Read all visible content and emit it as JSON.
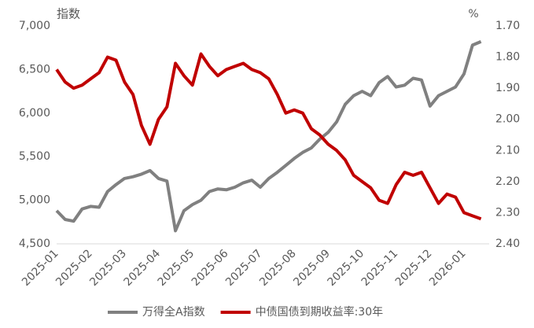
{
  "chart_data": {
    "type": "line",
    "y_label": "指数",
    "y2_label": "%",
    "categories": [
      "2025-01",
      null,
      null,
      null,
      "2025-02",
      null,
      null,
      null,
      "2025-03",
      null,
      null,
      null,
      "2025-04",
      null,
      null,
      null,
      "2025-05",
      null,
      null,
      null,
      "2025-06",
      null,
      null,
      null,
      "2025-07",
      null,
      null,
      null,
      "2025-08",
      null,
      null,
      null,
      "2025-09",
      null,
      null,
      null,
      "2025-10",
      null,
      null,
      null,
      "2025-11",
      null,
      null,
      null,
      "2025-12",
      null,
      null,
      null,
      "2026-01",
      null,
      null
    ],
    "series": [
      {
        "name": "万得全A指数",
        "color": "#808080",
        "axis": "y",
        "values": [
          4880,
          4780,
          4760,
          4900,
          4930,
          4920,
          5100,
          5180,
          5250,
          5270,
          5300,
          5340,
          5250,
          5220,
          4650,
          4880,
          4950,
          5000,
          5100,
          5130,
          5120,
          5150,
          5200,
          5230,
          5150,
          5250,
          5320,
          5400,
          5480,
          5550,
          5600,
          5700,
          5780,
          5900,
          6100,
          6200,
          6250,
          6200,
          6350,
          6420,
          6300,
          6320,
          6400,
          6380,
          6080,
          6200,
          6250,
          6300,
          6450,
          6780,
          6820
        ]
      },
      {
        "name": "中债国债到期收益率:30年",
        "color": "#c00000",
        "axis": "y2",
        "values": [
          1.84,
          1.88,
          1.9,
          1.89,
          1.87,
          1.85,
          1.8,
          1.81,
          1.88,
          1.92,
          2.02,
          2.08,
          2.0,
          1.96,
          1.82,
          1.86,
          1.89,
          1.79,
          1.83,
          1.86,
          1.84,
          1.83,
          1.82,
          1.84,
          1.85,
          1.87,
          1.92,
          1.98,
          1.97,
          1.98,
          2.03,
          2.05,
          2.08,
          2.1,
          2.13,
          2.18,
          2.2,
          2.22,
          2.26,
          2.27,
          2.21,
          2.17,
          2.18,
          2.17,
          2.22,
          2.27,
          2.24,
          2.25,
          2.3,
          2.31,
          2.32
        ]
      }
    ],
    "ylim": [
      4500,
      7000
    ],
    "yticks": [
      {
        "value": 4500,
        "label": "4,500"
      },
      {
        "value": 5000,
        "label": "5,000"
      },
      {
        "value": 5500,
        "label": "5,500"
      },
      {
        "value": 6000,
        "label": "6,000"
      },
      {
        "value": 6500,
        "label": "6,500"
      },
      {
        "value": 7000,
        "label": "7,000"
      }
    ],
    "y2lim": [
      1.7,
      2.4
    ],
    "y2_inverted": true,
    "y2ticks": [
      {
        "value": 1.7,
        "label": "1.70"
      },
      {
        "value": 1.8,
        "label": "1.80"
      },
      {
        "value": 1.9,
        "label": "1.90"
      },
      {
        "value": 2.0,
        "label": "2.00"
      },
      {
        "value": 2.1,
        "label": "2.10"
      },
      {
        "value": 2.2,
        "label": "2.20"
      },
      {
        "value": 2.3,
        "label": "2.30"
      },
      {
        "value": 2.4,
        "label": "2.40"
      }
    ],
    "legend": "bottom"
  }
}
